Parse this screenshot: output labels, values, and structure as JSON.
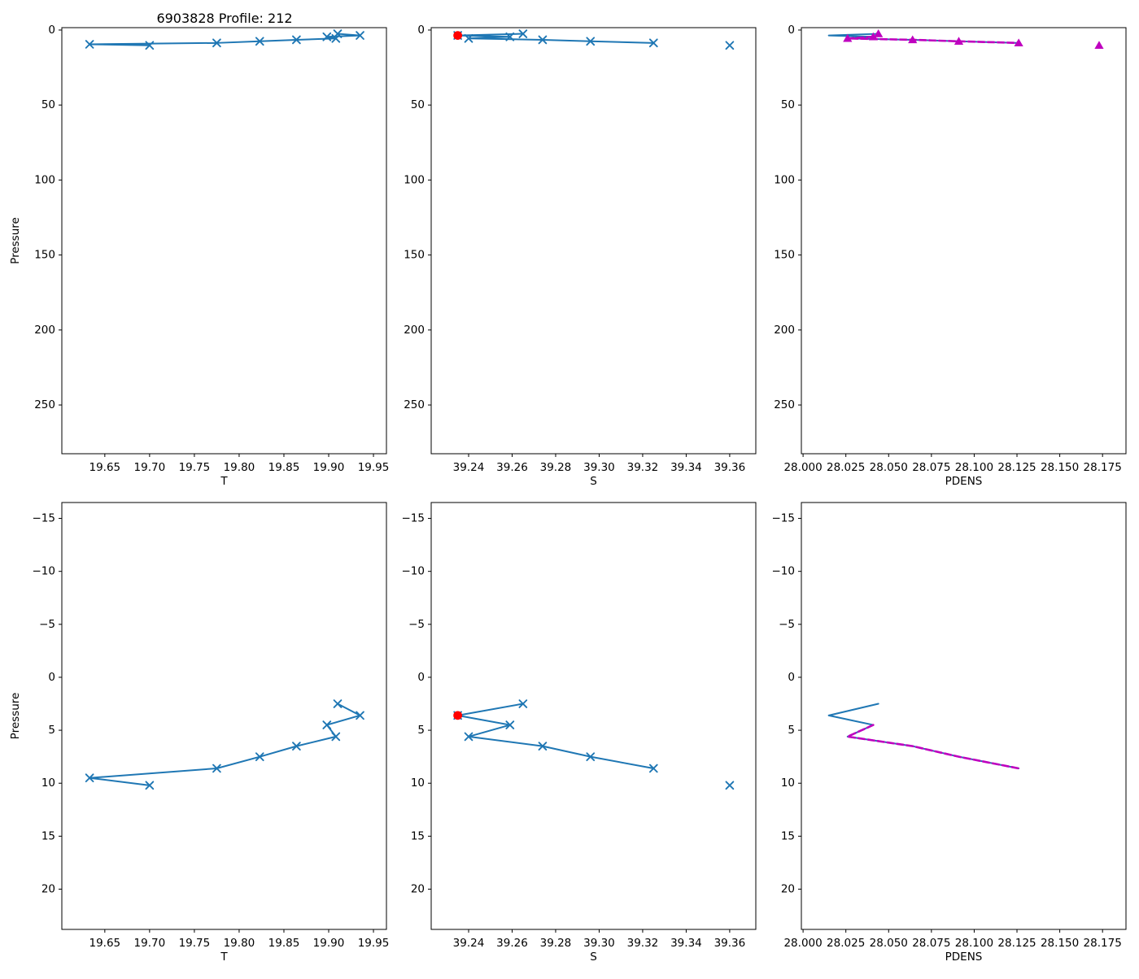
{
  "title": "6903828 Profile: 212",
  "colors": {
    "profile_blue": "#1f77b4",
    "flagged_red": "#ff0000",
    "adjusted_magenta": "#bf00bf",
    "axis_black": "#000000"
  },
  "chart_data": {
    "type": "line",
    "figure_title": "6903828 Profile: 212",
    "tick_sets": {
      "T": [
        {
          "v": 19.65,
          "label": "19.65"
        },
        {
          "v": 19.7,
          "label": "19.70"
        },
        {
          "v": 19.75,
          "label": "19.75"
        },
        {
          "v": 19.8,
          "label": "19.80"
        },
        {
          "v": 19.85,
          "label": "19.85"
        },
        {
          "v": 19.9,
          "label": "19.90"
        },
        {
          "v": 19.95,
          "label": "19.95"
        }
      ],
      "S": [
        {
          "v": 39.24,
          "label": "39.24"
        },
        {
          "v": 39.26,
          "label": "39.26"
        },
        {
          "v": 39.28,
          "label": "39.28"
        },
        {
          "v": 39.3,
          "label": "39.30"
        },
        {
          "v": 39.32,
          "label": "39.32"
        },
        {
          "v": 39.34,
          "label": "39.34"
        },
        {
          "v": 39.36,
          "label": "39.36"
        }
      ],
      "PDENS": [
        {
          "v": 28.0,
          "label": "28.000"
        },
        {
          "v": 28.025,
          "label": "28.025"
        },
        {
          "v": 28.05,
          "label": "28.050"
        },
        {
          "v": 28.075,
          "label": "28.075"
        },
        {
          "v": 28.1,
          "label": "28.100"
        },
        {
          "v": 28.125,
          "label": "28.125"
        },
        {
          "v": 28.15,
          "label": "28.150"
        },
        {
          "v": 28.175,
          "label": "28.175"
        }
      ],
      "pressure_full": [
        {
          "v": 0,
          "label": "0"
        },
        {
          "v": 50,
          "label": "50"
        },
        {
          "v": 100,
          "label": "100"
        },
        {
          "v": 150,
          "label": "150"
        },
        {
          "v": 200,
          "label": "200"
        },
        {
          "v": 250,
          "label": "250"
        }
      ],
      "pressure_zoom": [
        {
          "v": -15,
          "label": "−15"
        },
        {
          "v": -10,
          "label": "−10"
        },
        {
          "v": -5,
          "label": "−5"
        },
        {
          "v": 0,
          "label": "0"
        },
        {
          "v": 5,
          "label": "5"
        },
        {
          "v": 10,
          "label": "10"
        },
        {
          "v": 15,
          "label": "15"
        },
        {
          "v": 20,
          "label": "20"
        }
      ]
    },
    "subplots": [
      {
        "id": "temperature-full",
        "row": 0,
        "col": 0,
        "xlabel": "T",
        "ylabel": "Pressure",
        "xlim": [
          19.602,
          19.9645
        ],
        "ylim": [
          -1.6,
          282.5
        ],
        "x_ticks": "T",
        "y_ticks": "pressure_full",
        "series": [
          {
            "name": "temperature-profile",
            "color": "#1f77b4",
            "width": 2,
            "dash": null,
            "marker": "x",
            "points": [
              [
                19.91,
                2.5
              ],
              [
                19.935,
                3.6
              ],
              [
                19.898,
                4.5
              ],
              [
                19.908,
                5.6
              ],
              [
                19.864,
                6.5
              ],
              [
                19.823,
                7.5
              ],
              [
                19.775,
                8.6
              ],
              [
                19.633,
                9.5
              ],
              [
                19.7,
                10.2
              ]
            ]
          }
        ]
      },
      {
        "id": "salinity-full",
        "row": 0,
        "col": 1,
        "xlabel": "S",
        "ylabel": null,
        "xlim": [
          39.2228,
          39.372
        ],
        "ylim": [
          -1.6,
          282.5
        ],
        "x_ticks": "S",
        "y_ticks": "pressure_full",
        "series": [
          {
            "name": "salinity-profile",
            "color": "#1f77b4",
            "width": 2,
            "dash": null,
            "marker": "x",
            "points": [
              [
                39.265,
                2.5
              ],
              [
                39.235,
                3.6
              ],
              [
                39.259,
                4.5
              ],
              [
                39.24,
                5.6
              ],
              [
                39.274,
                6.5
              ],
              [
                39.296,
                7.5
              ],
              [
                39.325,
                8.6
              ]
            ]
          },
          {
            "name": "salinity-isolated-point",
            "color": "#1f77b4",
            "width": 2,
            "dash": null,
            "marker": "x",
            "line": false,
            "points": [
              [
                39.36,
                10.2
              ]
            ]
          },
          {
            "name": "flagged-salinity-point",
            "color": "#ff0000",
            "width": 2,
            "dash": null,
            "marker": "dot",
            "line": false,
            "points": [
              [
                39.235,
                3.6
              ]
            ]
          }
        ]
      },
      {
        "id": "pdens-full",
        "row": 0,
        "col": 2,
        "xlabel": "PDENS",
        "ylabel": null,
        "xlim": [
          27.999,
          28.1887
        ],
        "ylim": [
          -1.6,
          282.5
        ],
        "x_ticks": "PDENS",
        "y_ticks": "pressure_full",
        "series": [
          {
            "name": "pdens-original",
            "color": "#1f77b4",
            "width": 2,
            "dash": null,
            "marker": null,
            "points": [
              [
                28.044,
                2.5
              ],
              [
                28.015,
                3.6
              ],
              [
                28.041,
                4.5
              ],
              [
                28.026,
                5.6
              ],
              [
                28.064,
                6.5
              ],
              [
                28.091,
                7.5
              ],
              [
                28.126,
                8.6
              ]
            ]
          },
          {
            "name": "pdens-adjusted",
            "color": "#bf00bf",
            "width": 2.6,
            "dash": "8 4",
            "marker": null,
            "points": [
              [
                28.041,
                4.5
              ],
              [
                28.026,
                5.6
              ],
              [
                28.064,
                6.5
              ],
              [
                28.091,
                7.5
              ],
              [
                28.126,
                8.6
              ]
            ]
          },
          {
            "name": "pdens-adjusted-markers",
            "color": "#bf00bf",
            "width": 2,
            "dash": null,
            "marker": "triangle",
            "line": false,
            "points": [
              [
                28.044,
                2.5
              ],
              [
                28.041,
                4.5
              ],
              [
                28.026,
                5.6
              ],
              [
                28.064,
                6.5
              ],
              [
                28.091,
                7.5
              ],
              [
                28.126,
                8.6
              ],
              [
                28.173,
                10.2
              ]
            ]
          }
        ]
      },
      {
        "id": "temperature-zoom",
        "row": 1,
        "col": 0,
        "xlabel": "T",
        "ylabel": "Pressure",
        "xlim": [
          19.602,
          19.9645
        ],
        "ylim": [
          -16.5,
          23.8
        ],
        "x_ticks": "T",
        "y_ticks": "pressure_zoom",
        "series": [
          {
            "name": "temperature-profile",
            "color": "#1f77b4",
            "width": 2,
            "dash": null,
            "marker": "x",
            "points": [
              [
                19.91,
                2.5
              ],
              [
                19.935,
                3.6
              ],
              [
                19.898,
                4.5
              ],
              [
                19.908,
                5.6
              ],
              [
                19.864,
                6.5
              ],
              [
                19.823,
                7.5
              ],
              [
                19.775,
                8.6
              ],
              [
                19.633,
                9.5
              ],
              [
                19.7,
                10.2
              ]
            ]
          }
        ]
      },
      {
        "id": "salinity-zoom",
        "row": 1,
        "col": 1,
        "xlabel": "S",
        "ylabel": null,
        "xlim": [
          39.2228,
          39.372
        ],
        "ylim": [
          -16.5,
          23.8
        ],
        "x_ticks": "S",
        "y_ticks": "pressure_zoom",
        "series": [
          {
            "name": "salinity-profile",
            "color": "#1f77b4",
            "width": 2,
            "dash": null,
            "marker": "x",
            "points": [
              [
                39.265,
                2.5
              ],
              [
                39.235,
                3.6
              ],
              [
                39.259,
                4.5
              ],
              [
                39.24,
                5.6
              ],
              [
                39.274,
                6.5
              ],
              [
                39.296,
                7.5
              ],
              [
                39.325,
                8.6
              ]
            ]
          },
          {
            "name": "salinity-isolated-point",
            "color": "#1f77b4",
            "width": 2,
            "dash": null,
            "marker": "x",
            "line": false,
            "points": [
              [
                39.36,
                10.2
              ]
            ]
          },
          {
            "name": "flagged-salinity-point",
            "color": "#ff0000",
            "width": 2,
            "dash": null,
            "marker": "dot",
            "line": false,
            "points": [
              [
                39.235,
                3.6
              ]
            ]
          }
        ]
      },
      {
        "id": "pdens-zoom",
        "row": 1,
        "col": 2,
        "xlabel": "PDENS",
        "ylabel": null,
        "xlim": [
          27.999,
          28.1887
        ],
        "ylim": [
          -16.5,
          23.8
        ],
        "x_ticks": "PDENS",
        "y_ticks": "pressure_zoom",
        "series": [
          {
            "name": "pdens-original",
            "color": "#1f77b4",
            "width": 2,
            "dash": null,
            "marker": null,
            "points": [
              [
                28.044,
                2.5
              ],
              [
                28.015,
                3.6
              ],
              [
                28.041,
                4.5
              ],
              [
                28.026,
                5.6
              ],
              [
                28.064,
                6.5
              ],
              [
                28.091,
                7.5
              ],
              [
                28.126,
                8.6
              ]
            ]
          },
          {
            "name": "pdens-adjusted",
            "color": "#bf00bf",
            "width": 2.6,
            "dash": "8 4",
            "marker": null,
            "points": [
              [
                28.041,
                4.5
              ],
              [
                28.026,
                5.6
              ],
              [
                28.064,
                6.5
              ],
              [
                28.091,
                7.5
              ],
              [
                28.126,
                8.6
              ]
            ]
          }
        ]
      }
    ]
  }
}
